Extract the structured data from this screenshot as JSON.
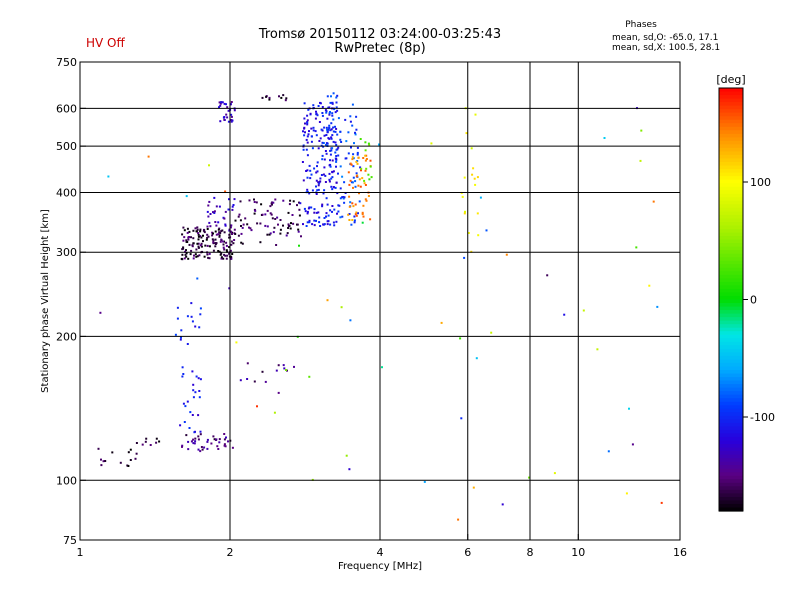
{
  "header": {
    "title": "Tromsø 20150112 03:24:00-03:25:43",
    "subtitle": "RwPretec (8p)",
    "hv_status": "HV Off",
    "phases_title": "Phases",
    "phases_line1": "mean, sd,O: -65.0, 17.1",
    "phases_line2": "mean, sd,X: 100.5, 28.1"
  },
  "colors": {
    "hv_status": "#cc0000",
    "grid": "#000000"
  },
  "chart_data": {
    "type": "scatter",
    "title": "Tromsø 20150112 03:24:00-03:25:43",
    "subtitle": "RwPretec (8p)",
    "xlabel": "Frequency [MHz]",
    "ylabel": "Stationary phase Virtual Height [km]",
    "xscale": "log",
    "yscale": "log",
    "xlim": [
      1,
      16
    ],
    "ylim": [
      75,
      750
    ],
    "x_ticks": [
      1,
      2,
      4,
      6,
      8,
      10,
      16
    ],
    "x_tick_labels": [
      "1",
      "2",
      "4",
      "6",
      "8",
      "10",
      "16"
    ],
    "x_grid": [
      2,
      4,
      6,
      8,
      10
    ],
    "y_ticks": [
      75,
      100,
      200,
      300,
      400,
      500,
      600,
      750
    ],
    "y_tick_labels": [
      "75",
      "100",
      "200",
      "300",
      "400",
      "500",
      "600",
      "750"
    ],
    "y_grid": [
      100,
      200,
      300,
      400,
      500,
      600
    ],
    "colorbar": {
      "label": "[deg]",
      "range": [
        -180,
        180
      ],
      "ticks": [
        100,
        0,
        -100
      ],
      "tick_labels": [
        "100",
        "0",
        "-100"
      ]
    },
    "clusters": [
      {
        "name": "E trace low",
        "x": [
          1.05,
          1.3
        ],
        "y": [
          105,
          118
        ],
        "phase": -170,
        "count": 14
      },
      {
        "name": "E trace mid",
        "x": [
          1.3,
          1.45
        ],
        "y": [
          118,
          124
        ],
        "phase": -160,
        "count": 8
      },
      {
        "name": "E curtain",
        "x": [
          1.6,
          2.05
        ],
        "y": [
          115,
          125
        ],
        "phase": -150,
        "count": 40
      },
      {
        "name": "Es band 1",
        "x": [
          1.55,
          1.75
        ],
        "y": [
          125,
          175
        ],
        "phase": -110,
        "count": 25
      },
      {
        "name": "Es band 2",
        "x": [
          1.55,
          1.75
        ],
        "y": [
          190,
          240
        ],
        "phase": -100,
        "count": 15
      },
      {
        "name": "Es band 3",
        "x": [
          2.1,
          2.7
        ],
        "y": [
          160,
          180
        ],
        "phase": -150,
        "count": 12
      },
      {
        "name": "F1 low",
        "x": [
          1.6,
          2.05
        ],
        "y": [
          290,
          340
        ],
        "phase": -165,
        "count": 160
      },
      {
        "name": "F1 mid",
        "x": [
          1.8,
          2.05
        ],
        "y": [
          330,
          390
        ],
        "phase": -130,
        "count": 30
      },
      {
        "name": "F1 upper",
        "x": [
          2.05,
          2.8
        ],
        "y": [
          310,
          390
        ],
        "phase": -160,
        "count": 80
      },
      {
        "name": "F2 O trace",
        "x": [
          2.8,
          3.3
        ],
        "y": [
          340,
          620
        ],
        "phase": -110,
        "count": 200
      },
      {
        "name": "F2 O trace upper",
        "x": [
          3.05,
          3.3
        ],
        "y": [
          450,
          650
        ],
        "phase": -95,
        "count": 50
      },
      {
        "name": "F2 mid",
        "x": [
          3.3,
          3.65
        ],
        "y": [
          340,
          580
        ],
        "phase": -90,
        "count": 60
      },
      {
        "name": "F2 X trace",
        "x": [
          3.45,
          3.85
        ],
        "y": [
          350,
          480
        ],
        "phase": 140,
        "count": 50
      },
      {
        "name": "F2 X green",
        "x": [
          3.65,
          3.85
        ],
        "y": [
          420,
          530
        ],
        "phase": 40,
        "count": 12
      },
      {
        "name": "Spread F",
        "x": [
          1.9,
          2.05
        ],
        "y": [
          560,
          620
        ],
        "phase": -130,
        "count": 30
      },
      {
        "name": "Spread F 2",
        "x": [
          2.3,
          2.6
        ],
        "y": [
          620,
          640
        ],
        "phase": -170,
        "count": 10
      },
      {
        "name": "Scatter 6MHz",
        "x": [
          5.8,
          6.3
        ],
        "y": [
          300,
          620
        ],
        "phase": 95,
        "count": 18
      },
      {
        "name": "Background",
        "x": [
          1.05,
          15
        ],
        "y": [
          80,
          640
        ],
        "phase": 0,
        "count": 60
      }
    ]
  }
}
